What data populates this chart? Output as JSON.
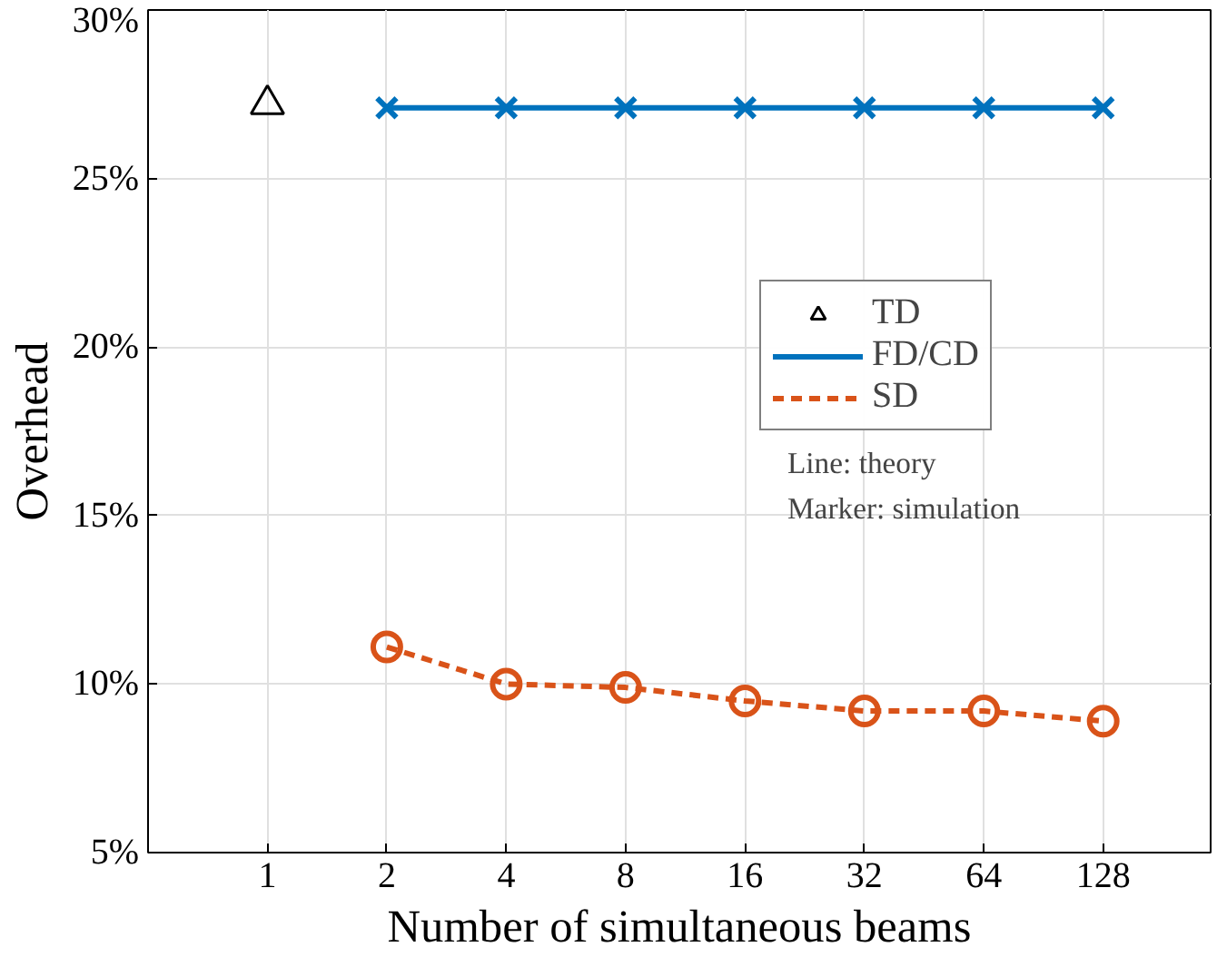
{
  "chart_data": {
    "type": "line",
    "xlabel": "Number of simultaneous beams",
    "ylabel": "Overhead",
    "categories": [
      "1",
      "2",
      "4",
      "8",
      "16",
      "32",
      "64",
      "128"
    ],
    "series": [
      {
        "name": "TD",
        "type": "scatter",
        "marker": "triangle",
        "color": "#000000",
        "values": [
          27.2,
          null,
          null,
          null,
          null,
          null,
          null,
          null
        ]
      },
      {
        "name": "FD/CD",
        "marker": "cross",
        "line_style": "solid",
        "color": "#0072bd",
        "values": [
          null,
          27.1,
          27.1,
          27.1,
          27.1,
          27.1,
          27.1,
          27.1
        ]
      },
      {
        "name": "SD",
        "marker": "circle",
        "line_style": "dashed",
        "color": "#d95319",
        "values": [
          null,
          11.1,
          10.0,
          9.9,
          9.5,
          9.2,
          9.2,
          8.9
        ]
      }
    ],
    "ylim": [
      5,
      30
    ],
    "yticks": [
      {
        "value": 5,
        "label": "5%"
      },
      {
        "value": 10,
        "label": "10%"
      },
      {
        "value": 15,
        "label": "15%"
      },
      {
        "value": 20,
        "label": "20%"
      },
      {
        "value": 25,
        "label": "25%"
      },
      {
        "value": 30,
        "label": "30%"
      }
    ],
    "grid": true,
    "legend": "right",
    "annotations": [
      "Line: theory",
      "Marker: simulation"
    ]
  }
}
